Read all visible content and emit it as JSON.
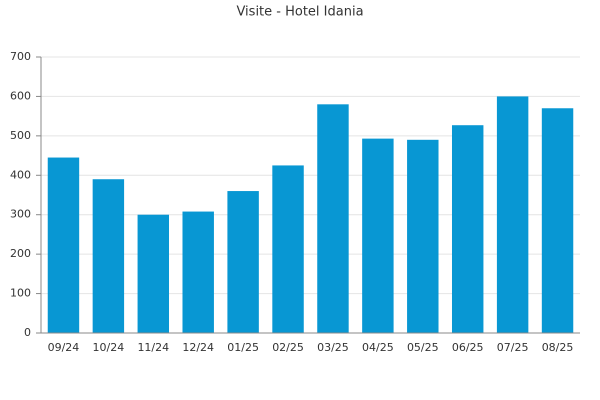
{
  "chart_data": {
    "type": "bar",
    "title": "Visite - Hotel Idania",
    "categories": [
      "09/24",
      "10/24",
      "11/24",
      "12/24",
      "01/25",
      "02/25",
      "03/25",
      "04/25",
      "05/25",
      "06/25",
      "07/25",
      "08/25"
    ],
    "values": [
      445,
      390,
      300,
      308,
      360,
      425,
      580,
      493,
      490,
      527,
      600,
      570
    ],
    "color": "#0897d3",
    "ylim": [
      0,
      700
    ],
    "yticks": [
      0,
      100,
      200,
      300,
      400,
      500,
      600,
      700
    ],
    "grid": true
  }
}
